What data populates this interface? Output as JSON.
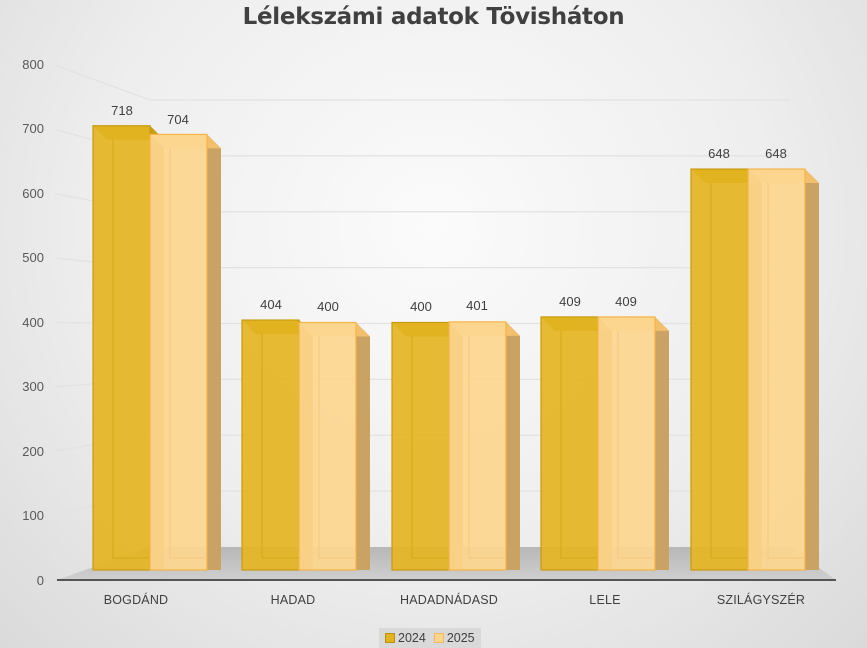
{
  "chart_data": {
    "type": "bar",
    "style": "3d-clustered-column",
    "title": "Lélekszámi adatok Tövisháton",
    "xlabel": "",
    "ylabel": "",
    "ylim": [
      0,
      800
    ],
    "yticks": [
      0,
      100,
      200,
      300,
      400,
      500,
      600,
      700,
      800
    ],
    "grid": true,
    "legend_position": "bottom",
    "categories": [
      "BOGDÁND",
      "HADAD",
      "HADADNÁDASD",
      "LELE",
      "SZILÁGYSZÉR"
    ],
    "series": [
      {
        "name": "2024",
        "values": [
          718,
          404,
          400,
          409,
          648
        ],
        "color": "#e2b31f"
      },
      {
        "name": "2025",
        "values": [
          704,
          400,
          401,
          409,
          648
        ],
        "color": "#fdd58c"
      }
    ]
  },
  "title": "Lélekszámi adatok Tövisháton",
  "yaxis": {
    "ticks": [
      "0",
      "100",
      "200",
      "300",
      "400",
      "500",
      "600",
      "700",
      "800"
    ]
  },
  "xaxis": {
    "categories": [
      "BOGDÁND",
      "HADAD",
      "HADADNÁDASD",
      "LELE",
      "SZILÁGYSZÉR"
    ]
  },
  "labels": {
    "s2024": [
      "718",
      "404",
      "400",
      "409",
      "648"
    ],
    "s2025": [
      "704",
      "400",
      "401",
      "409",
      "648"
    ]
  },
  "legend": {
    "items": [
      {
        "label": "2024",
        "color": "#e2b31f"
      },
      {
        "label": "2025",
        "color": "#fdd58c"
      }
    ]
  }
}
